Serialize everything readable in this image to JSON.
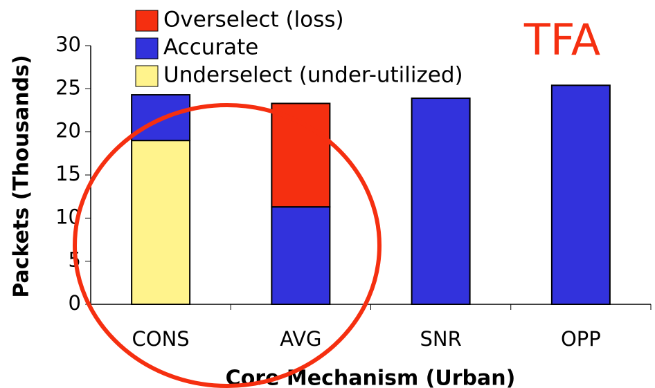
{
  "chart_data": {
    "type": "stacked_bar",
    "annotation": "TFA",
    "xlabel": "Core Mechanism (Urban)",
    "ylabel": "Packets (Thousands)",
    "categories": [
      "CONS",
      "AVG",
      "SNR",
      "OPP"
    ],
    "series": [
      {
        "name": "Underselect (under-utilized)",
        "color": "#fff38c",
        "values": [
          19,
          0,
          0,
          0
        ]
      },
      {
        "name": "Accurate",
        "color": "#3232dc",
        "values": [
          5.3,
          11.3,
          23.9,
          25.4
        ]
      },
      {
        "name": "Overselect (loss)",
        "color": "#f52f10",
        "values": [
          0,
          12.0,
          0,
          0
        ]
      }
    ],
    "ylim": [
      0,
      30
    ],
    "yticks": [
      0,
      5,
      10,
      15,
      20,
      25,
      30
    ]
  }
}
